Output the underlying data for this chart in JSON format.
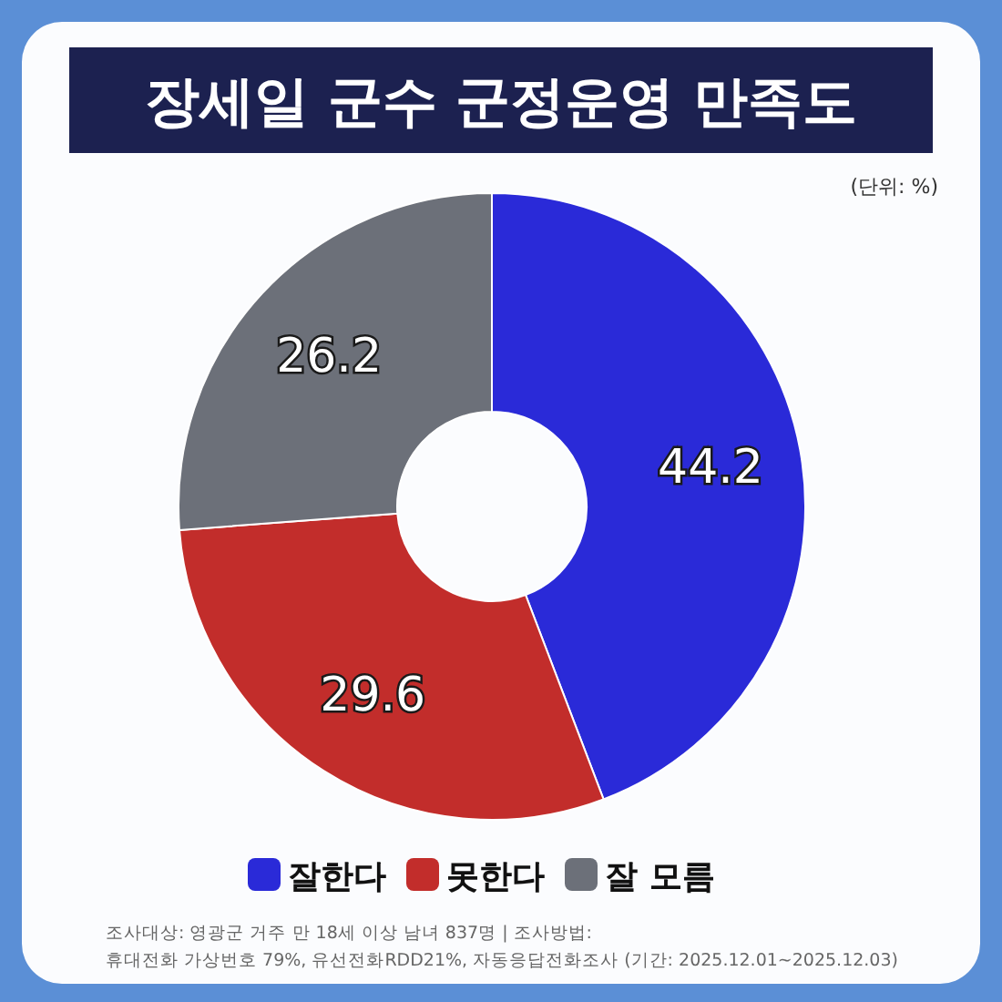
{
  "chart_data": {
    "type": "donut",
    "title": "장세일 군수 군정운영 만족도",
    "subtitle": "(단위: %)",
    "categories": [
      "잘한다",
      "못한다",
      "잘 모름"
    ],
    "values": [
      44.2,
      29.6,
      26.2
    ],
    "colors": [
      "#2a2ad8",
      "#c22d2b",
      "#6c7079"
    ],
    "data_labels": true,
    "legend": "bottom",
    "annotations": [
      "조사대상: 영광군 거주 만 18세 이상 남녀 837명 | 조사방법:",
      "휴대전화 가상번호 79%, 유선전화RDD21%, 자동응답전화조사 (기간: 2025.12.01~2025.12.03)"
    ]
  }
}
